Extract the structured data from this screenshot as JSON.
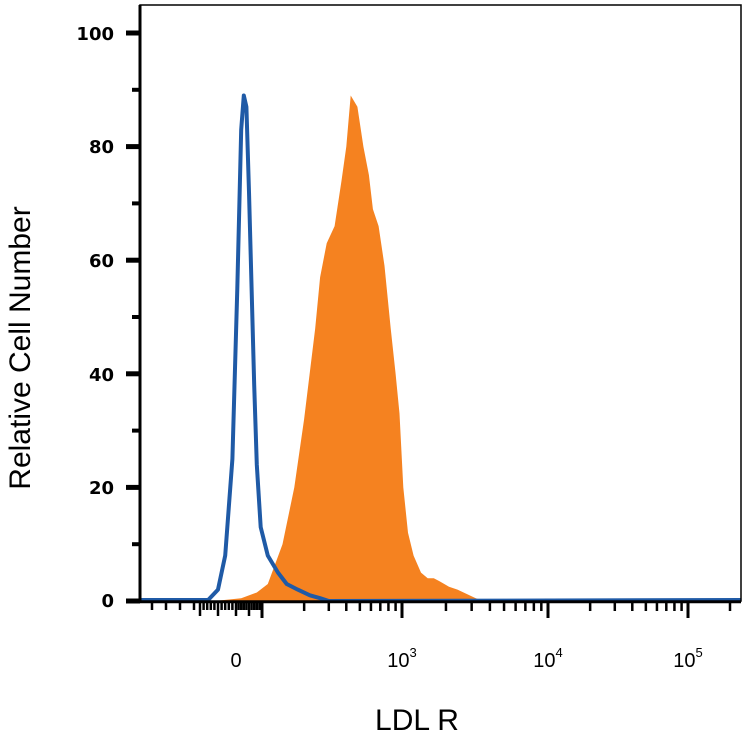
{
  "chart_data": {
    "type": "area",
    "title": "",
    "xlabel": "LDL R",
    "ylabel": "Relative Cell Number",
    "x_scale": "biexponential",
    "ylim": [
      0,
      100
    ],
    "y_ticks": [
      "0",
      "20",
      "40",
      "60",
      "80",
      "100"
    ],
    "x_ticks": [
      {
        "base": "0",
        "exp": ""
      },
      {
        "base": "10",
        "exp": "3"
      },
      {
        "base": "10",
        "exp": "4"
      },
      {
        "base": "10",
        "exp": "5"
      }
    ],
    "grid": false,
    "series": [
      {
        "role": "filled",
        "color": "#f58220",
        "x": [
          -60,
          20,
          80,
          110,
          140,
          170,
          200,
          240,
          260,
          290,
          330,
          370,
          400,
          430,
          480,
          530,
          580,
          620,
          680,
          750,
          830,
          900,
          960,
          1020,
          1100,
          1200,
          1350,
          1500,
          1650,
          1800,
          1950,
          2100,
          2400,
          2800,
          3200,
          3600
        ],
        "y": [
          0,
          0.5,
          1.5,
          3,
          10,
          20,
          32,
          48,
          57,
          63,
          66,
          74,
          80,
          89,
          87,
          80,
          75,
          69,
          66,
          59,
          48,
          40,
          33,
          20,
          12,
          8,
          5,
          4,
          4,
          3.5,
          3,
          2.5,
          2,
          1.2,
          0.5,
          0
        ]
      },
      {
        "role": "outline",
        "color": "#1f5aa6",
        "x": [
          -80,
          -50,
          -30,
          -10,
          5,
          20,
          30,
          40,
          50,
          60,
          70,
          80,
          95,
          110,
          130,
          150,
          180,
          220,
          260,
          300
        ],
        "y": [
          0,
          2,
          8,
          25,
          55,
          83,
          89,
          87,
          72,
          55,
          38,
          24,
          13,
          8,
          5,
          3,
          2,
          1,
          0.5,
          0
        ]
      }
    ]
  }
}
